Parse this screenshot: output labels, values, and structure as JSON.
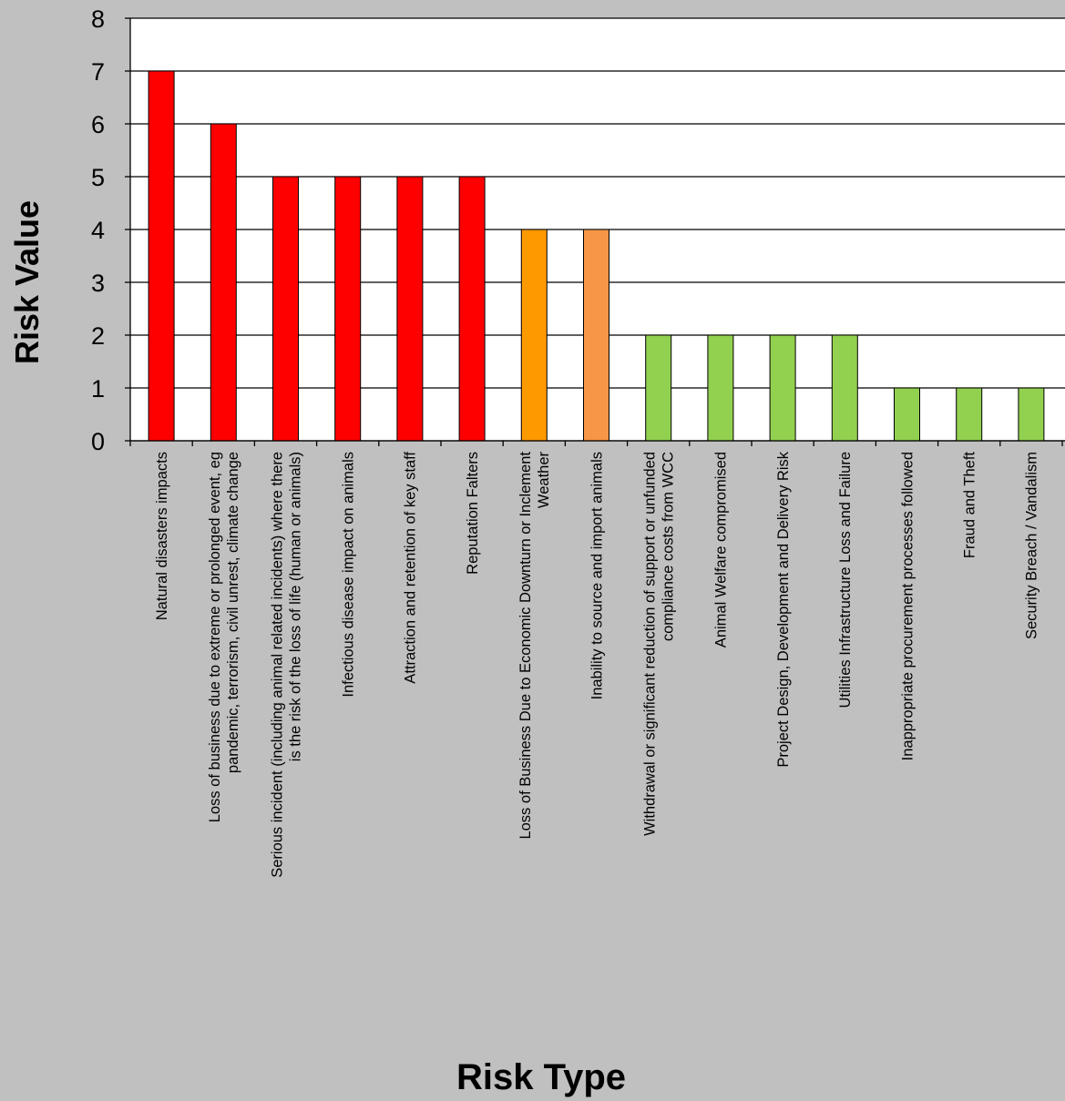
{
  "chart_data": {
    "type": "bar",
    "title": "",
    "xlabel": "Risk Type",
    "ylabel": "Risk Value",
    "ylim": [
      0,
      8
    ],
    "yticks": [
      0,
      1,
      2,
      3,
      4,
      5,
      6,
      7,
      8
    ],
    "grid": true,
    "legend": "none",
    "categories": [
      [
        "Natural disasters impacts"
      ],
      [
        "Loss of business due to extreme or prolonged event, eg",
        "pandemic, terrorism, civil unrest, climate change"
      ],
      [
        "Serious incident (including animal related incidents) where there",
        "is the risk of the loss of life (human or animals)"
      ],
      [
        "Infectious disease impact on animals"
      ],
      [
        "Attraction and retention of key staff"
      ],
      [
        "Reputation Falters"
      ],
      [
        "Loss of Business Due to Economic Downturn or Inclement",
        "Weather"
      ],
      [
        "Inability to source and import animals"
      ],
      [
        "Withdrawal or significant reduction of support or unfunded",
        "compliance costs from WCC"
      ],
      [
        "Animal Welfare compromised"
      ],
      [
        "Project Design, Development and Delivery Risk"
      ],
      [
        "Utilities Infrastructure Loss and Failure"
      ],
      [
        "Inappropriate procurement processes followed"
      ],
      [
        "Fraud and Theft"
      ],
      [
        "Security Breach / Vandalism"
      ]
    ],
    "values": [
      7,
      6,
      5,
      5,
      5,
      5,
      4,
      4,
      2,
      2,
      2,
      2,
      1,
      1,
      1
    ],
    "colors": [
      "#ff0000",
      "#ff0000",
      "#ff0000",
      "#ff0000",
      "#ff0000",
      "#ff0000",
      "#ff9900",
      "#f79646",
      "#92d050",
      "#92d050",
      "#92d050",
      "#92d050",
      "#92d050",
      "#92d050",
      "#92d050"
    ]
  }
}
